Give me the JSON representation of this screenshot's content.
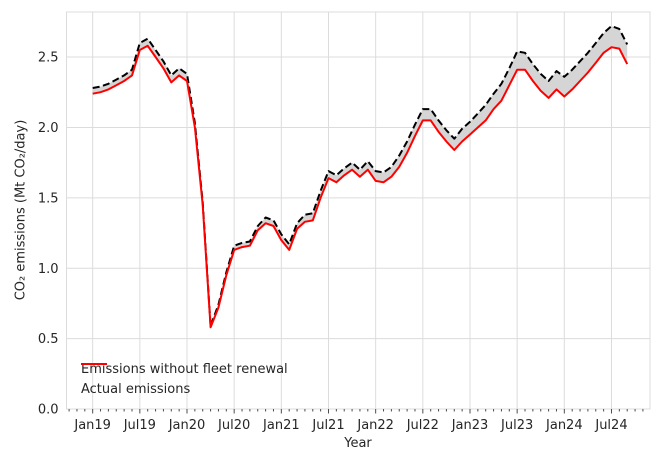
{
  "figure": {
    "background": "#ffffff",
    "text_color": "#262626",
    "grid_color": "#dcdcdc",
    "tick_color": "#4d4d4d"
  },
  "chart_data": {
    "type": "line",
    "title": "",
    "xlabel": "Year",
    "ylabel": "CO₂ emissions (Mt CO₂/day)",
    "x": [
      "Jan19",
      "Feb19",
      "Mar19",
      "Apr19",
      "May19",
      "Jun19",
      "Jul19",
      "Aug19",
      "Sep19",
      "Oct19",
      "Nov19",
      "Dec19",
      "Jan20",
      "Feb20",
      "Mar20",
      "Apr20",
      "May20",
      "Jun20",
      "Jul20",
      "Aug20",
      "Sep20",
      "Oct20",
      "Nov20",
      "Dec20",
      "Jan21",
      "Feb21",
      "Mar21",
      "Apr21",
      "May21",
      "Jun21",
      "Jul21",
      "Aug21",
      "Sep21",
      "Oct21",
      "Nov21",
      "Dec21",
      "Jan22",
      "Feb22",
      "Mar22",
      "Apr22",
      "May22",
      "Jun22",
      "Jul22",
      "Aug22",
      "Sep22",
      "Oct22",
      "Nov22",
      "Dec22",
      "Jan23",
      "Feb23",
      "Mar23",
      "Apr23",
      "May23",
      "Jun23",
      "Jul23",
      "Aug23",
      "Sep23",
      "Oct23",
      "Nov23",
      "Dec23",
      "Jan24",
      "Feb24",
      "Mar24",
      "Apr24",
      "May24",
      "Jun24",
      "Jul24",
      "Aug24",
      "Sep24"
    ],
    "series": [
      {
        "name": "Emissions without fleet renewal",
        "color": "#000000",
        "style": "dashed",
        "values": [
          2.28,
          2.29,
          2.31,
          2.34,
          2.37,
          2.41,
          2.6,
          2.63,
          2.55,
          2.47,
          2.37,
          2.42,
          2.38,
          2.03,
          1.47,
          0.59,
          0.74,
          0.97,
          1.16,
          1.18,
          1.19,
          1.3,
          1.36,
          1.34,
          1.24,
          1.17,
          1.32,
          1.38,
          1.39,
          1.55,
          1.69,
          1.66,
          1.71,
          1.75,
          1.7,
          1.76,
          1.69,
          1.68,
          1.72,
          1.8,
          1.9,
          2.02,
          2.13,
          2.13,
          2.05,
          1.98,
          1.92,
          1.99,
          2.04,
          2.1,
          2.16,
          2.24,
          2.31,
          2.42,
          2.54,
          2.53,
          2.45,
          2.38,
          2.33,
          2.4,
          2.36,
          2.41,
          2.47,
          2.53,
          2.6,
          2.67,
          2.72,
          2.7,
          2.59
        ]
      },
      {
        "name": "Actual emissions",
        "color": "#ff0000",
        "style": "solid",
        "values": [
          2.24,
          2.25,
          2.27,
          2.3,
          2.33,
          2.37,
          2.55,
          2.58,
          2.5,
          2.42,
          2.32,
          2.37,
          2.33,
          2.0,
          1.45,
          0.58,
          0.72,
          0.95,
          1.13,
          1.15,
          1.16,
          1.27,
          1.32,
          1.3,
          1.2,
          1.13,
          1.28,
          1.33,
          1.34,
          1.5,
          1.64,
          1.61,
          1.66,
          1.7,
          1.65,
          1.7,
          1.62,
          1.61,
          1.65,
          1.72,
          1.82,
          1.94,
          2.05,
          2.05,
          1.97,
          1.9,
          1.84,
          1.9,
          1.95,
          2.0,
          2.05,
          2.13,
          2.19,
          2.3,
          2.41,
          2.41,
          2.33,
          2.26,
          2.21,
          2.27,
          2.22,
          2.27,
          2.33,
          2.39,
          2.46,
          2.53,
          2.57,
          2.56,
          2.45
        ]
      }
    ],
    "fill_between": {
      "upper": "Emissions without fleet renewal",
      "lower": "Actual emissions",
      "color": "#d5d5d5"
    },
    "xticks": {
      "positions": [
        0,
        6,
        12,
        18,
        24,
        30,
        36,
        42,
        48,
        54,
        60,
        66
      ],
      "labels": [
        "Jan19",
        "Jul19",
        "Jan20",
        "Jul20",
        "Jan21",
        "Jul21",
        "Jan22",
        "Jul22",
        "Jan23",
        "Jul23",
        "Jan24",
        "Jul24"
      ]
    },
    "yticks": {
      "values": [
        0,
        0.5,
        1.0,
        1.5,
        2.0,
        2.5
      ],
      "labels": [
        "0.0",
        "0.5",
        "1.0",
        "1.5",
        "2.0",
        "2.5"
      ]
    },
    "ylim": [
      0,
      2.82
    ],
    "xlim_months": [
      -3.33,
      70.9
    ],
    "grid": true,
    "legend_position": "lower left"
  }
}
